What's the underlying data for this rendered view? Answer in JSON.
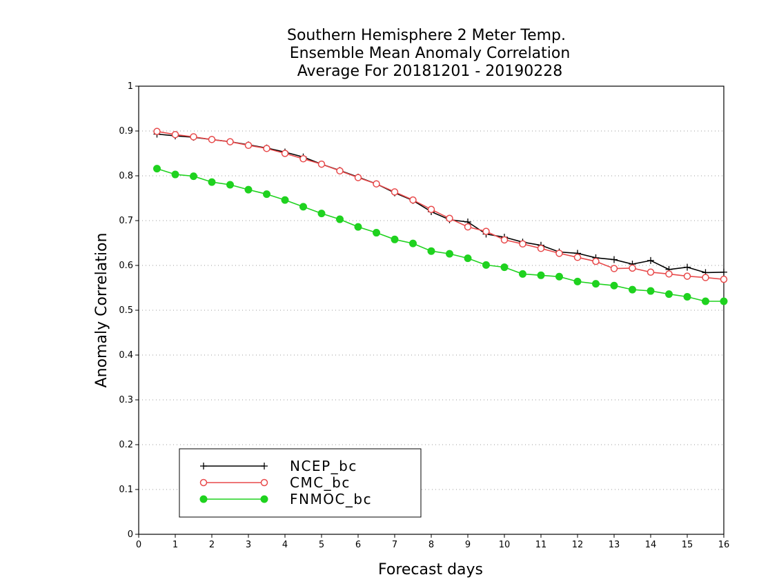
{
  "chart_data": {
    "type": "line",
    "title": [
      "Southern Hemisphere 2 Meter Temp.",
      "Ensemble Mean Anomaly Correlation",
      "Average For 20181201 - 20190228"
    ],
    "xlabel": "Forecast days",
    "ylabel": "Anomaly Correlation",
    "xlim": [
      0,
      16
    ],
    "ylim": [
      0,
      1
    ],
    "xticks": [
      "0",
      "1",
      "2",
      "3",
      "4",
      "5",
      "6",
      "7",
      "8",
      "9",
      "10",
      "11",
      "12",
      "13",
      "14",
      "15",
      "16"
    ],
    "yticks": [
      "0",
      "0.1",
      "0.2",
      "0.3",
      "0.4",
      "0.5",
      "0.6",
      "0.7",
      "0.8",
      "0.9",
      "1"
    ],
    "grid": "horizontal dotted",
    "legend_position": "bottom-left",
    "x": [
      0.5,
      1.0,
      1.5,
      2.0,
      2.5,
      3.0,
      3.5,
      4.0,
      4.5,
      5.0,
      5.5,
      6.0,
      6.5,
      7.0,
      7.5,
      8.0,
      8.5,
      9.0,
      9.5,
      10.0,
      10.5,
      11.0,
      11.5,
      12.0,
      12.5,
      13.0,
      13.5,
      14.0,
      14.5,
      15.0,
      15.5,
      16.0
    ],
    "series": [
      {
        "name": "NCEP_bc",
        "color": "#000000",
        "marker": "plus",
        "values": [
          0.893,
          0.889,
          0.886,
          0.881,
          0.876,
          0.869,
          0.862,
          0.853,
          0.842,
          0.826,
          0.812,
          0.797,
          0.782,
          0.762,
          0.745,
          0.72,
          0.702,
          0.697,
          0.67,
          0.663,
          0.652,
          0.645,
          0.63,
          0.627,
          0.617,
          0.613,
          0.603,
          0.611,
          0.591,
          0.596,
          0.584,
          0.585
        ]
      },
      {
        "name": "CMC_bc",
        "color": "#e8494a",
        "marker": "open-circle",
        "values": [
          0.899,
          0.892,
          0.887,
          0.881,
          0.876,
          0.868,
          0.861,
          0.85,
          0.838,
          0.826,
          0.811,
          0.796,
          0.782,
          0.764,
          0.746,
          0.725,
          0.705,
          0.686,
          0.676,
          0.657,
          0.648,
          0.638,
          0.627,
          0.618,
          0.609,
          0.593,
          0.594,
          0.585,
          0.581,
          0.576,
          0.573,
          0.569
        ]
      },
      {
        "name": "FNMOC_bc",
        "color": "#1fd21f",
        "marker": "filled-circle",
        "values": [
          0.816,
          0.803,
          0.799,
          0.786,
          0.78,
          0.769,
          0.759,
          0.746,
          0.731,
          0.716,
          0.703,
          0.686,
          0.673,
          0.658,
          0.649,
          0.632,
          0.626,
          0.616,
          0.601,
          0.596,
          0.581,
          0.578,
          0.575,
          0.564,
          0.559,
          0.555,
          0.546,
          0.543,
          0.536,
          0.53,
          0.52,
          0.52
        ]
      }
    ]
  }
}
